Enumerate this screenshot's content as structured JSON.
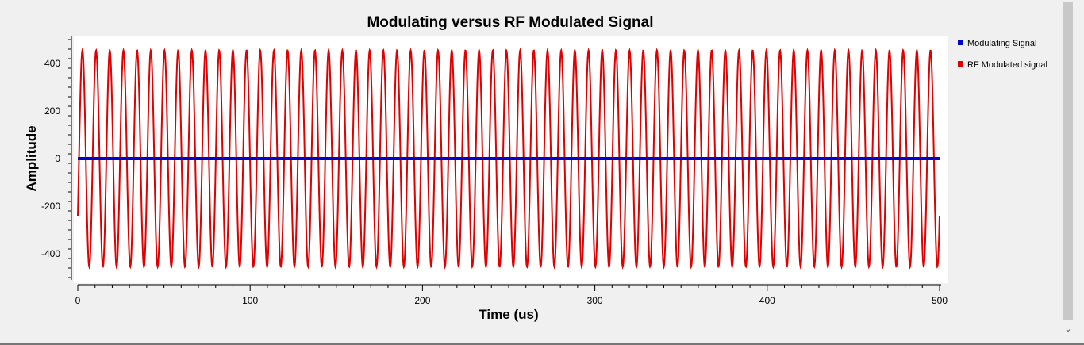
{
  "chart_data": {
    "type": "line",
    "title": "Modulating versus RF Modulated Signal",
    "xlabel": "Time (us)",
    "ylabel": "Amplitude",
    "xlim": [
      0,
      500
    ],
    "ylim": [
      -500,
      500
    ],
    "xticks": [
      0,
      100,
      200,
      300,
      400,
      500
    ],
    "yticks": [
      -400,
      -200,
      0,
      200,
      400
    ],
    "grid": false,
    "legend_placement": "right",
    "series": [
      {
        "name": "Modulating Signal",
        "color": "#0000cc",
        "x": [
          0,
          500
        ],
        "y": [
          0,
          0
        ]
      },
      {
        "name": "RF Modulated signal",
        "color": "#e00000",
        "cycles": 63,
        "amplitude": 455,
        "x_start": 0,
        "x_end": 500,
        "y_start": -240,
        "y_end": -310
      }
    ]
  },
  "legend": {
    "items": [
      {
        "label": "Modulating Signal",
        "color": "#0000cc"
      },
      {
        "label": "RF Modulated signal",
        "color": "#e00000"
      }
    ]
  },
  "scrollbar": {
    "down_icon": "chevron-down-icon",
    "down_glyph": "⌄"
  }
}
